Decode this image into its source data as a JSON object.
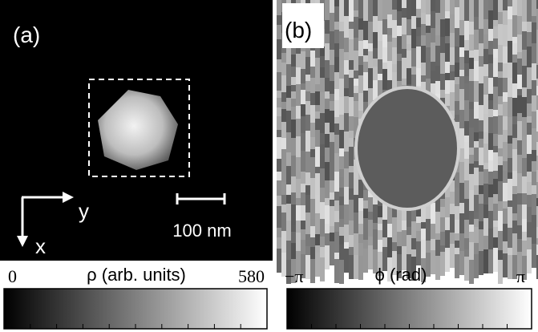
{
  "panels": [
    {
      "label": "(a)",
      "axes": {
        "y": "y",
        "x": "x"
      },
      "scale_bar": "100 nm",
      "colorbar": {
        "min": "0",
        "title": "ρ (arb. units)",
        "max": "580"
      }
    },
    {
      "label": "(b)",
      "colorbar": {
        "min": "−π",
        "title": "ϕ (rad)",
        "max": "π"
      }
    }
  ]
}
